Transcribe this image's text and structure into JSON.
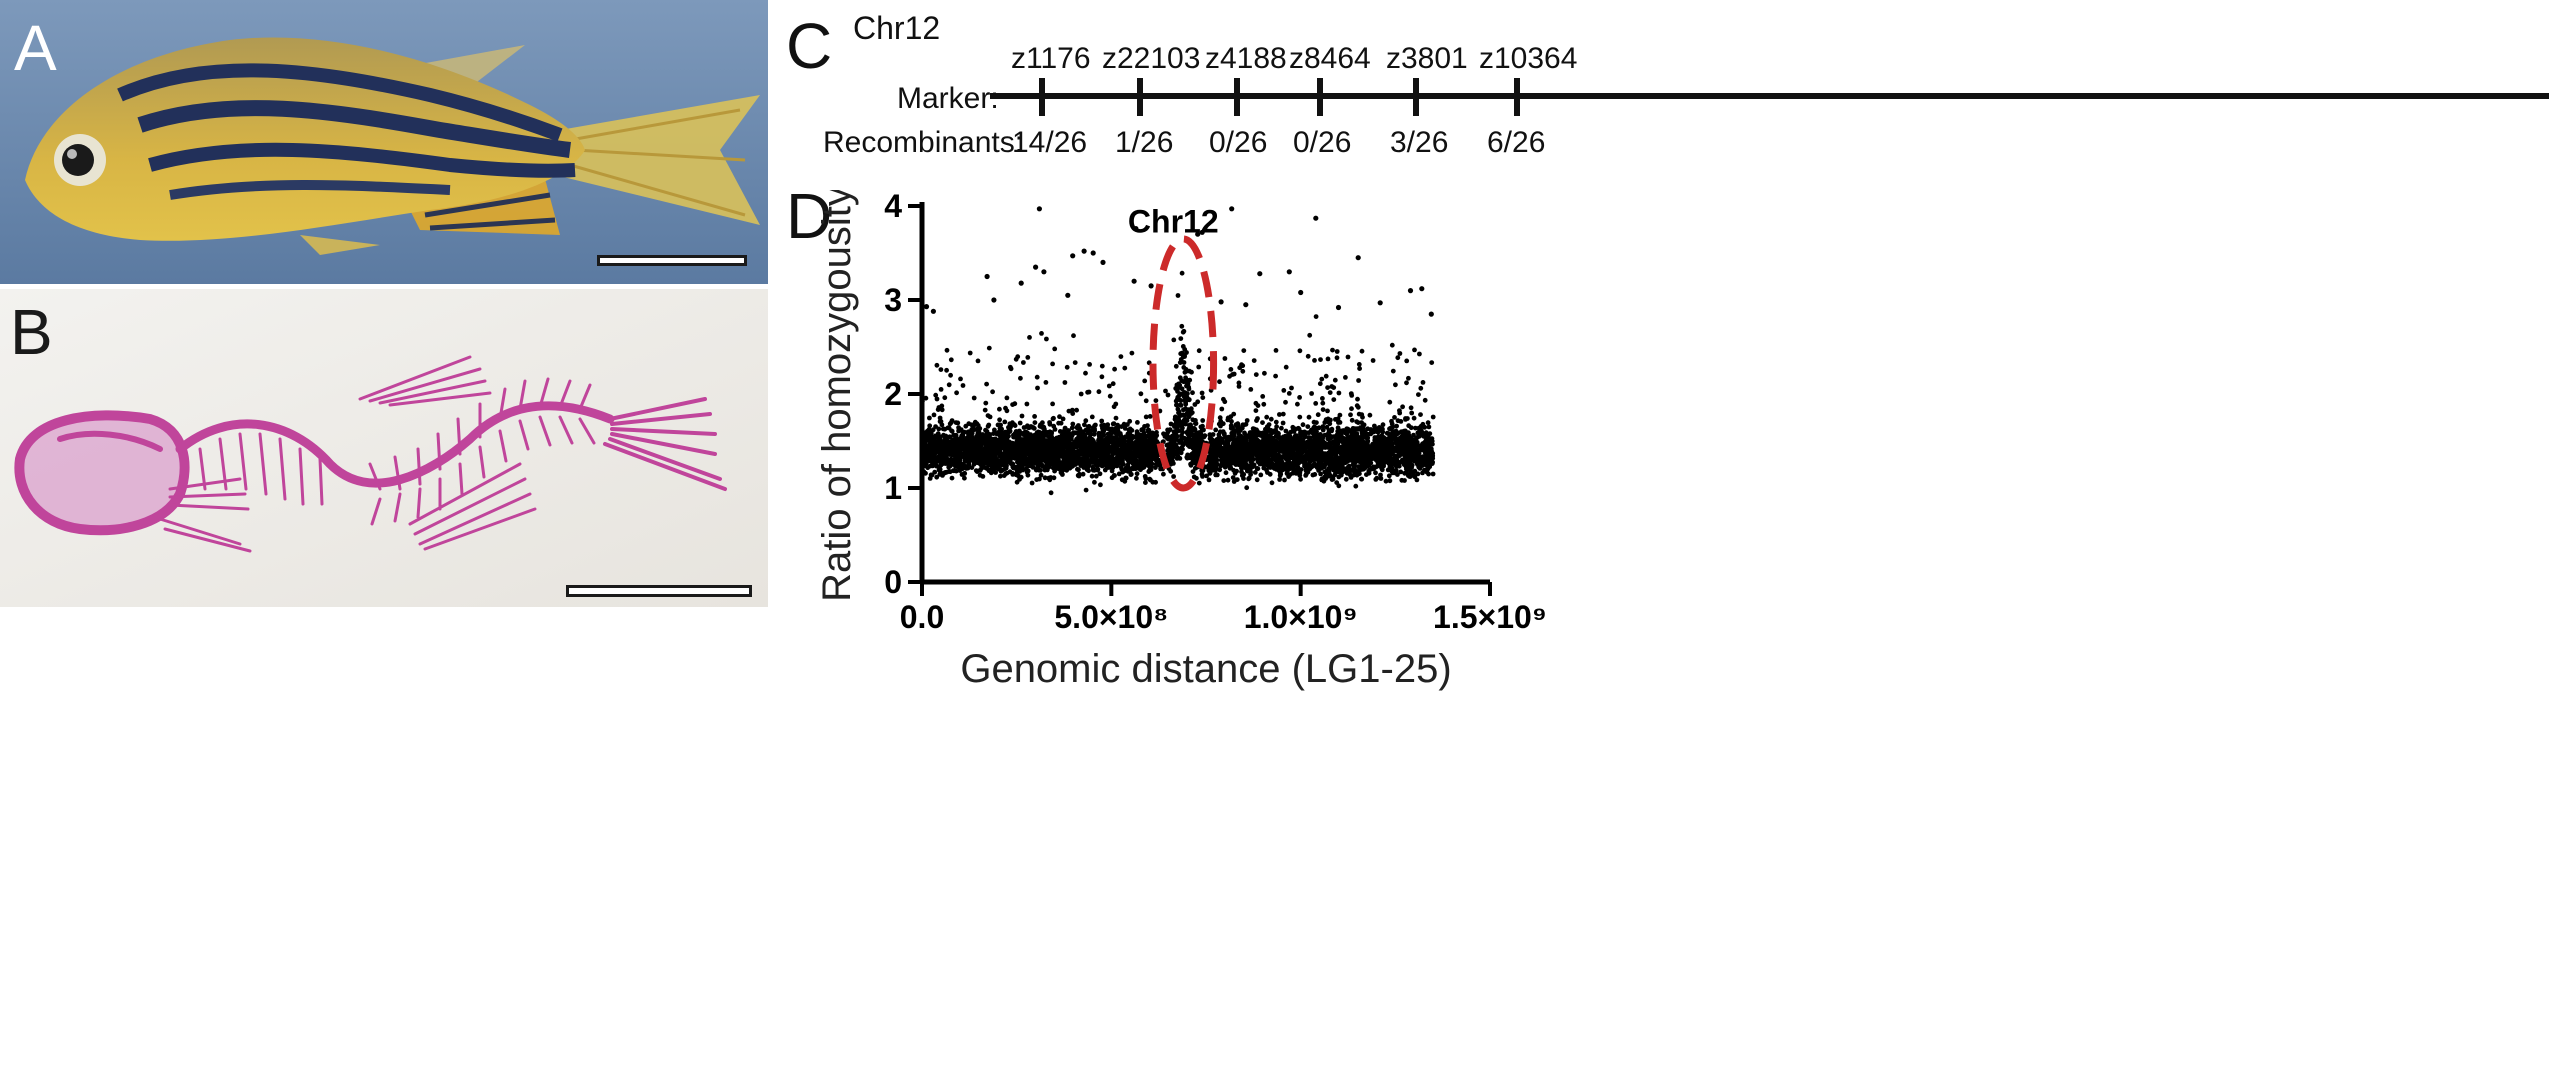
{
  "panels": {
    "A": {
      "letter": "A"
    },
    "B": {
      "letter": "B"
    },
    "C": {
      "letter": "C"
    },
    "D": {
      "letter": "D"
    }
  },
  "panel_c": {
    "chromosome": "Chr12",
    "marker_label": "Marker:",
    "recombinants_label": "Recombinants:",
    "markers": [
      {
        "name": "z1176",
        "recombinants": "14/26"
      },
      {
        "name": "z22103",
        "recombinants": "1/26"
      },
      {
        "name": "z4188",
        "recombinants": "0/26"
      },
      {
        "name": "z8464",
        "recombinants": "0/26"
      },
      {
        "name": "z3801",
        "recombinants": "3/26"
      },
      {
        "name": "z10364",
        "recombinants": "6/26"
      }
    ]
  },
  "chart_data": {
    "type": "scatter",
    "title": "",
    "xlabel": "Genomic distance (LG1-25)",
    "ylabel": "Ratio of homozygousity",
    "xlim": [
      0,
      1500000000
    ],
    "ylim": [
      0,
      4
    ],
    "x_ticks": [
      {
        "value": 0,
        "label": "0.0"
      },
      {
        "value": 500000000,
        "label": "5.0×10⁸"
      },
      {
        "value": 1000000000,
        "label": "1.0×10⁹"
      },
      {
        "value": 1500000000,
        "label": "1.5×10⁹"
      }
    ],
    "y_ticks": [
      {
        "value": 0,
        "label": "0"
      },
      {
        "value": 1,
        "label": "1"
      },
      {
        "value": 2,
        "label": "2"
      },
      {
        "value": 3,
        "label": "3"
      },
      {
        "value": 4,
        "label": "4"
      }
    ],
    "annotation": {
      "label": "Chr12",
      "x_center": 690000000,
      "x_halfwidth": 80000000,
      "y_low": 1.0,
      "y_high": 3.65,
      "color": "#cc2a2a"
    },
    "point_color": "#000000",
    "series": [
      {
        "x_range": [
          0,
          1350000000
        ],
        "baseline_y": 1.4,
        "peak_x": 690000000,
        "peak_y": 2.7,
        "approx_points": 5600,
        "outlier_points": [
          [
            310000000,
            3.97
          ],
          [
            818000000,
            3.97
          ],
          [
            1040000000,
            3.87
          ],
          [
            565000000,
            3.76
          ],
          [
            728000000,
            3.7
          ],
          [
            740000000,
            3.72
          ],
          [
            398000000,
            3.47
          ],
          [
            428000000,
            3.52
          ],
          [
            452000000,
            3.5
          ],
          [
            478000000,
            3.4
          ],
          [
            300000000,
            3.35
          ],
          [
            322000000,
            3.3
          ],
          [
            172000000,
            3.25
          ],
          [
            892000000,
            3.28
          ],
          [
            970000000,
            3.3
          ],
          [
            1152000000,
            3.45
          ],
          [
            1290000000,
            3.1
          ],
          [
            1320000000,
            3.12
          ],
          [
            262000000,
            3.18
          ],
          [
            560000000,
            3.2
          ],
          [
            605000000,
            3.15
          ],
          [
            190000000,
            3.0
          ],
          [
            385000000,
            3.05
          ],
          [
            1000000000,
            3.08
          ],
          [
            1210000000,
            2.97
          ],
          [
            855000000,
            2.95
          ],
          [
            1100000000,
            2.92
          ],
          [
            12000000,
            2.93
          ],
          [
            30000000,
            2.88
          ],
          [
            1345000000,
            2.85
          ],
          [
            790000000,
            2.98
          ]
        ]
      }
    ]
  }
}
